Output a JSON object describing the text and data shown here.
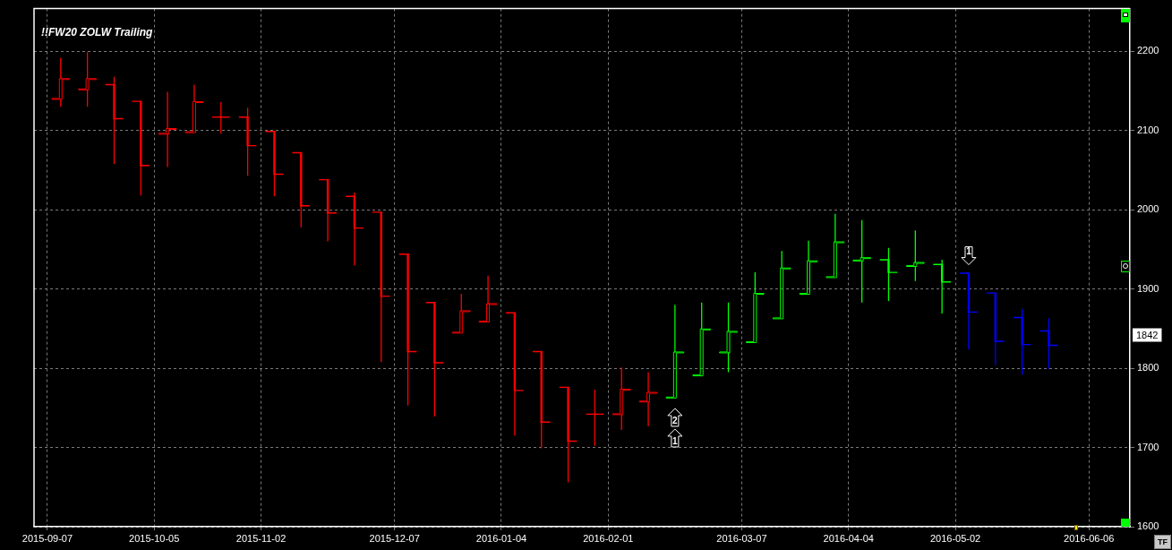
{
  "chart_data": {
    "type": "candlestick",
    "title": "!!FW20 ZOLW Trailing",
    "x": [
      "2015-09-10T12:00",
      "2015-09-17T12:00",
      "2015-09-24T12:00",
      "2015-10-01T12:00",
      "2015-10-08T12:00",
      "2015-10-15T12:00",
      "2015-10-22T12:00",
      "2015-10-29T12:00",
      "2015-11-05T12:00",
      "2015-11-12T12:00",
      "2015-11-19T12:00",
      "2015-11-26T12:00",
      "2015-12-03T12:00",
      "2015-12-10T12:00",
      "2015-12-17T12:00",
      "2015-12-24T12:00",
      "2015-12-31T12:00",
      "2016-01-07T12:00",
      "2016-01-14T12:00",
      "2016-01-21T12:00",
      "2016-01-28T12:00",
      "2016-02-04T12:00",
      "2016-02-11T12:00",
      "2016-02-18T12:00",
      "2016-02-25T12:00",
      "2016-03-03T12:00",
      "2016-03-10T12:00",
      "2016-03-17T12:00",
      "2016-03-24T12:00",
      "2016-03-31T12:00",
      "2016-04-07T12:00",
      "2016-04-14T12:00",
      "2016-04-21T12:00",
      "2016-04-28T12:00",
      "2016-05-05T12:00",
      "2016-05-12T12:00",
      "2016-05-19T12:00",
      "2016-05-26T12:00"
    ],
    "ohlc": [
      [
        2140,
        2192,
        2130,
        2165
      ],
      [
        2152,
        2199,
        2130,
        2165
      ],
      [
        2158,
        2168,
        2058,
        2115
      ],
      [
        2137,
        2137,
        2018,
        2056
      ],
      [
        2096,
        2149,
        2054,
        2102
      ],
      [
        2098,
        2158,
        2098,
        2136
      ],
      [
        2117,
        2136,
        2096,
        2117
      ],
      [
        2117,
        2129,
        2043,
        2081
      ],
      [
        2099,
        2099,
        2017,
        2045
      ],
      [
        2072,
        2072,
        1978,
        2005
      ],
      [
        2038,
        2038,
        1960,
        1996
      ],
      [
        2017,
        2022,
        1930,
        1977
      ],
      [
        1997,
        1997,
        1808,
        1891
      ],
      [
        1944,
        1944,
        1753,
        1821
      ],
      [
        1883,
        1883,
        1739,
        1807
      ],
      [
        1845,
        1894,
        1845,
        1872
      ],
      [
        1859,
        1917,
        1859,
        1881
      ],
      [
        1870,
        1870,
        1715,
        1772
      ],
      [
        1821,
        1821,
        1699,
        1732
      ],
      [
        1776,
        1776,
        1656,
        1708
      ],
      [
        1742,
        1773,
        1702,
        1742
      ],
      [
        1742,
        1801,
        1722,
        1773
      ],
      [
        1758,
        1795,
        1727,
        1769
      ],
      [
        1763,
        1880,
        1763,
        1820
      ],
      [
        1791,
        1883,
        1791,
        1849
      ],
      [
        1820,
        1883,
        1795,
        1846
      ],
      [
        1833,
        1921,
        1833,
        1894
      ],
      [
        1863,
        1948,
        1863,
        1926
      ],
      [
        1894,
        1961,
        1894,
        1935
      ],
      [
        1915,
        1995,
        1915,
        1959
      ],
      [
        1936,
        1987,
        1883,
        1939
      ],
      [
        1937,
        1952,
        1885,
        1921
      ],
      [
        1929,
        1974,
        1910,
        1933
      ],
      [
        1931,
        1937,
        1869,
        1909
      ],
      [
        1920,
        1920,
        1824,
        1871
      ],
      [
        1895,
        1895,
        1804,
        1834
      ],
      [
        1864,
        1875,
        1792,
        1830
      ],
      [
        1847,
        1863,
        1799,
        1829
      ]
    ],
    "colors": [
      "#ff0000",
      "#ff0000",
      "#ff0000",
      "#ff0000",
      "#ff0000",
      "#ff0000",
      "#ff0000",
      "#ff0000",
      "#ff0000",
      "#ff0000",
      "#ff0000",
      "#ff0000",
      "#ff0000",
      "#ff0000",
      "#ff0000",
      "#ff0000",
      "#ff0000",
      "#ff0000",
      "#ff0000",
      "#ff0000",
      "#ff0000",
      "#ff0000",
      "#ff0000",
      "#00ff00",
      "#00ff00",
      "#00ff00",
      "#00ff00",
      "#00ff00",
      "#00ff00",
      "#00ff00",
      "#00ff00",
      "#00ff00",
      "#00ff00",
      "#00ff00",
      "#0000ff",
      "#0000ff",
      "#0000ff",
      "#0000ff"
    ],
    "xlim": [
      "2015-09-03T12:00",
      "2016-06-16T18:00"
    ],
    "xticks": [
      "2015-09-07",
      "2015-10-05",
      "2015-11-02",
      "2015-12-07",
      "2016-01-04",
      "2016-02-01",
      "2016-03-07",
      "2016-04-04",
      "2016-05-02",
      "2016-06-06"
    ],
    "ylim": [
      1600,
      2254
    ],
    "yticks": [
      1600,
      1700,
      1800,
      1900,
      2000,
      2100,
      2200
    ],
    "grid": true,
    "annotations": [
      "TF",
      {
        "text": "1842",
        "y": 1842
      },
      {
        "text": "2",
        "x": "2016-02-18T12:00",
        "y": 1738
      },
      {
        "text": "1",
        "x": "2016-02-18T12:00",
        "y": 1712
      },
      {
        "text": "1",
        "x": "2016-05-05T12:00",
        "y": 1942
      }
    ]
  }
}
